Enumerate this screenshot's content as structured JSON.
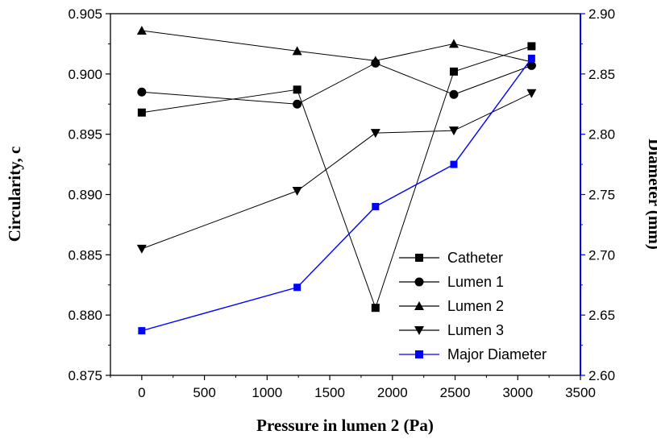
{
  "chart_data": {
    "type": "line",
    "xlabel": "Pressure in lumen 2 (Pa)",
    "ylabel_left": "Circularity, c",
    "ylabel_right": "Diameter (mm)",
    "xlim": [
      -250,
      3500
    ],
    "ylim_left": [
      0.875,
      0.905
    ],
    "ylim_right": [
      2.6,
      2.9
    ],
    "x_ticks": [
      0,
      500,
      1000,
      1500,
      2000,
      2500,
      3000,
      3500
    ],
    "y_left_ticks": [
      "0.875",
      "0.880",
      "0.885",
      "0.890",
      "0.895",
      "0.900",
      "0.905"
    ],
    "y_right_ticks": [
      "2.60",
      "2.65",
      "2.70",
      "2.75",
      "2.80",
      "2.85",
      "2.90"
    ],
    "legend_position": "bottom-right",
    "series": [
      {
        "name": "Catheter",
        "axis": "left",
        "marker": "square",
        "color": "#000000",
        "x": [
          0,
          1240,
          1865,
          2490,
          3110
        ],
        "values": [
          0.8968,
          0.8987,
          0.8806,
          0.9002,
          0.9023
        ]
      },
      {
        "name": "Lumen 1",
        "axis": "left",
        "marker": "circle",
        "color": "#000000",
        "x": [
          0,
          1240,
          1865,
          2490,
          3110
        ],
        "values": [
          0.8985,
          0.8975,
          0.9009,
          0.8983,
          0.9007
        ]
      },
      {
        "name": "Lumen 2",
        "axis": "left",
        "marker": "triangle-up",
        "color": "#000000",
        "x": [
          0,
          1240,
          1865,
          2490,
          3110
        ],
        "values": [
          0.9036,
          0.9019,
          0.9011,
          0.9025,
          0.901
        ]
      },
      {
        "name": "Lumen 3",
        "axis": "left",
        "marker": "triangle-down",
        "color": "#000000",
        "x": [
          0,
          1240,
          1865,
          2490,
          3110
        ],
        "values": [
          0.8855,
          0.8903,
          0.8951,
          0.8953,
          0.8984
        ]
      },
      {
        "name": "Major Diameter",
        "axis": "right",
        "marker": "square",
        "color": "#0000ff",
        "x": [
          0,
          1240,
          1865,
          2490,
          3110
        ],
        "values": [
          2.637,
          2.673,
          2.74,
          2.775,
          2.863
        ]
      }
    ]
  }
}
